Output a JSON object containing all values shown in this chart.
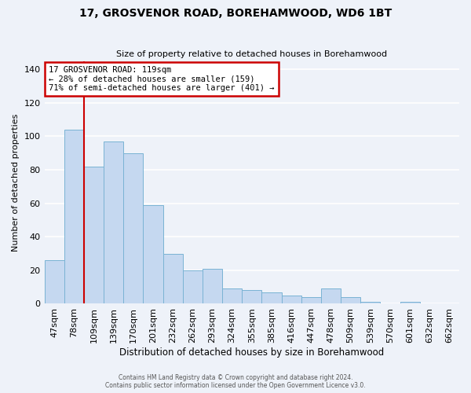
{
  "title": "17, GROSVENOR ROAD, BOREHAMWOOD, WD6 1BT",
  "subtitle": "Size of property relative to detached houses in Borehamwood",
  "xlabel": "Distribution of detached houses by size in Borehamwood",
  "ylabel": "Number of detached properties",
  "bar_labels": [
    "47sqm",
    "78sqm",
    "109sqm",
    "139sqm",
    "170sqm",
    "201sqm",
    "232sqm",
    "262sqm",
    "293sqm",
    "324sqm",
    "355sqm",
    "385sqm",
    "416sqm",
    "447sqm",
    "478sqm",
    "509sqm",
    "539sqm",
    "570sqm",
    "601sqm",
    "632sqm",
    "662sqm"
  ],
  "bar_values": [
    26,
    104,
    82,
    97,
    90,
    59,
    30,
    20,
    21,
    9,
    8,
    7,
    5,
    4,
    9,
    4,
    1,
    0,
    1,
    0,
    0
  ],
  "bar_color": "#c5d8f0",
  "bar_edgecolor": "#7ab3d4",
  "ylim": [
    0,
    145
  ],
  "yticks": [
    0,
    20,
    40,
    60,
    80,
    100,
    120,
    140
  ],
  "property_line_label": "17 GROSVENOR ROAD: 119sqm",
  "annotation_line1": "← 28% of detached houses are smaller (159)",
  "annotation_line2": "71% of semi-detached houses are larger (401) →",
  "box_color": "#ffffff",
  "box_edgecolor": "#cc0000",
  "line_color": "#cc0000",
  "line_x_index": 2.5,
  "background_color": "#eef2f9",
  "grid_color": "#ffffff",
  "footer1": "Contains HM Land Registry data © Crown copyright and database right 2024.",
  "footer2": "Contains public sector information licensed under the Open Government Licence v3.0."
}
